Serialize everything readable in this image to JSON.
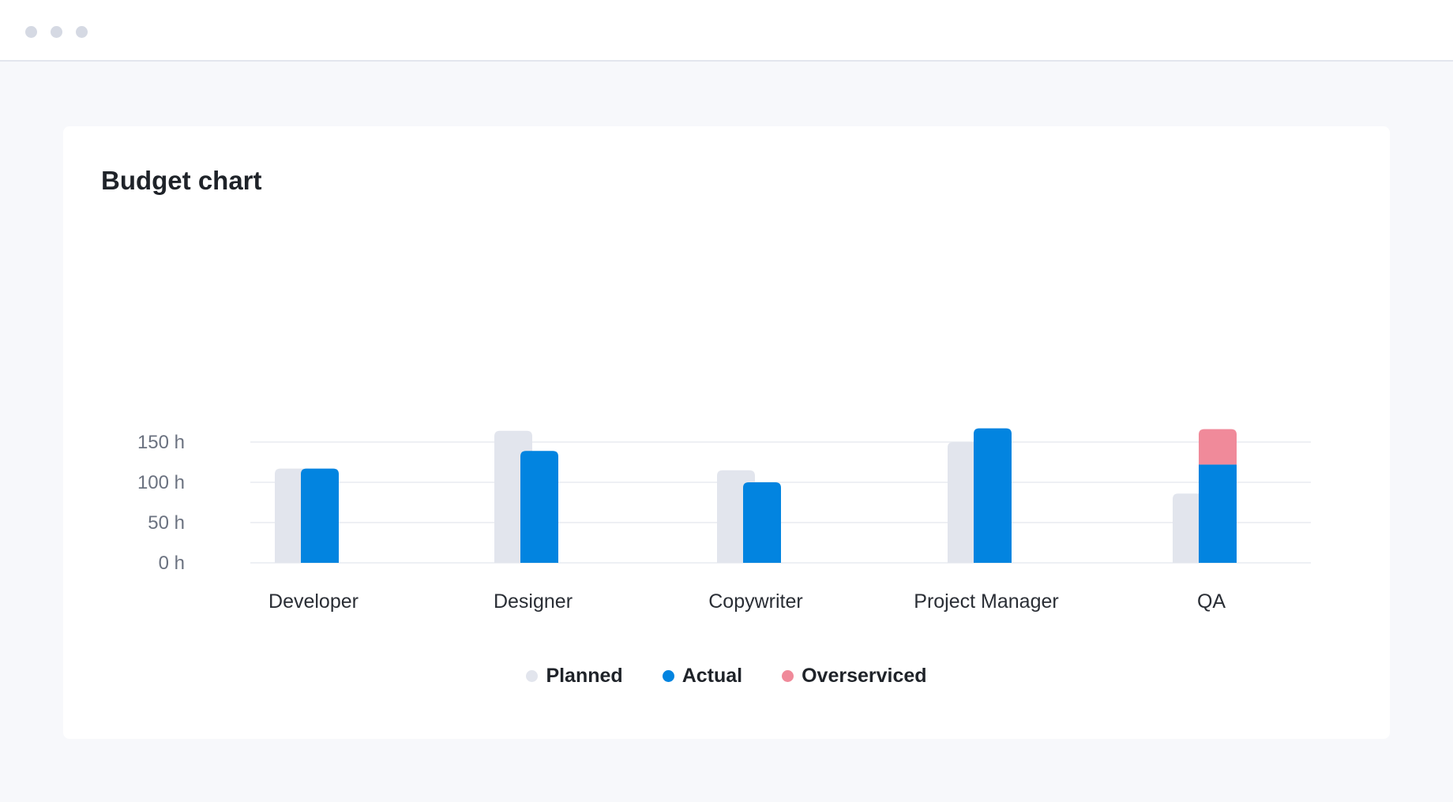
{
  "window": {
    "controls": [
      {
        "name": "window-dot-1",
        "color": "#d5d9e3"
      },
      {
        "name": "window-dot-2",
        "color": "#d5d9e3"
      },
      {
        "name": "window-dot-3",
        "color": "#d5d9e3"
      }
    ]
  },
  "colors": {
    "planned": "#e2e5ed",
    "actual": "#0284e0",
    "overserviced": "#f08a9a",
    "grid": "#eef0f4",
    "tick_text": "#6b7280",
    "category_text": "#2a2e35"
  },
  "chart_data": {
    "type": "bar",
    "title": "Budget chart",
    "xlabel": "",
    "ylabel": "",
    "categories": [
      "Developer",
      "Designer",
      "Copywriter",
      "Project Manager",
      "QA"
    ],
    "series": [
      {
        "name": "Planned",
        "values": [
          117,
          164,
          115,
          150,
          86
        ]
      },
      {
        "name": "Actual",
        "values": [
          117,
          139,
          100,
          167,
          122
        ]
      },
      {
        "name": "Overserviced",
        "values": [
          0,
          0,
          0,
          0,
          44
        ]
      }
    ],
    "stacked_series": [
      "Actual",
      "Overserviced"
    ],
    "yticks": [
      0,
      50,
      100,
      150
    ],
    "ytick_labels": [
      "0 h",
      "50 h",
      "100 h",
      "150 h"
    ],
    "ylim": [
      0,
      175
    ],
    "grid": true,
    "legend_position": "bottom-center"
  }
}
